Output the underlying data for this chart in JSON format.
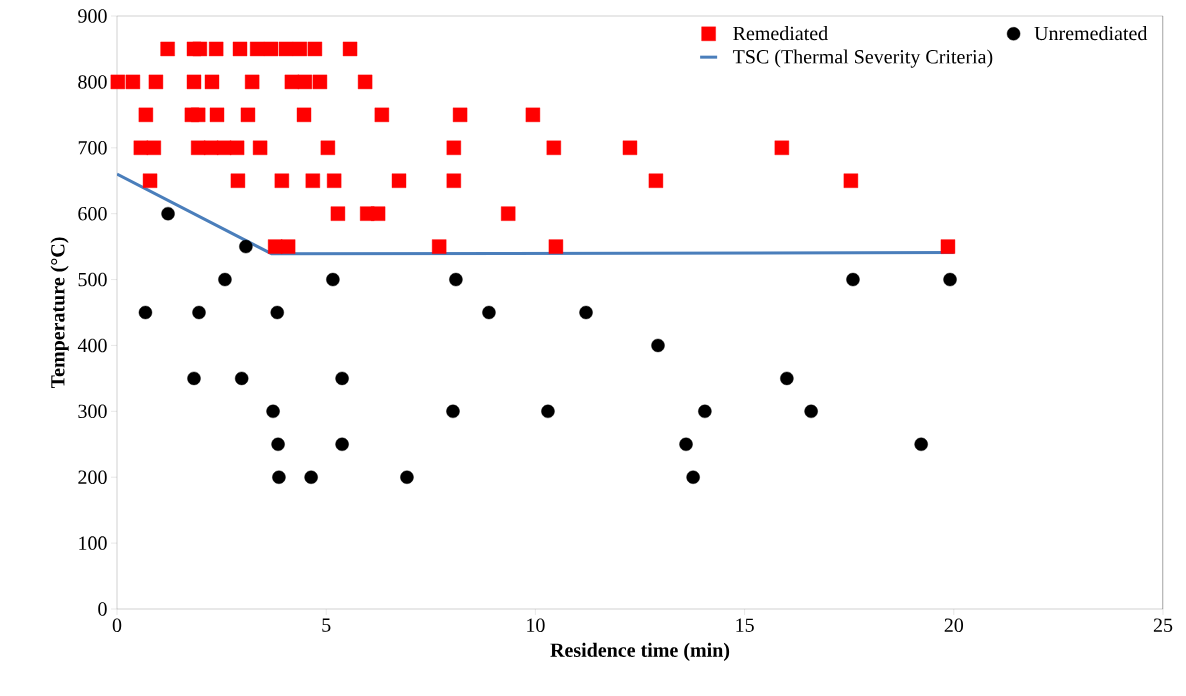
{
  "chart_data": {
    "type": "scatter",
    "xlabel": "Residence time (min)",
    "ylabel": "Temperature (°C)",
    "xlim": [
      0,
      25
    ],
    "ylim": [
      0,
      900
    ],
    "xticks": [
      0,
      5,
      10,
      15,
      20,
      25
    ],
    "yticks": [
      0,
      100,
      200,
      300,
      400,
      500,
      600,
      700,
      800,
      900
    ],
    "legend": "top right",
    "series": [
      {
        "name": "Remediated",
        "marker": "square",
        "color": "#ff0000",
        "x": [
          1.21,
          1.84,
          1.98,
          2.37,
          2.94,
          3.35,
          3.68,
          4.04,
          4.37,
          4.73,
          5.57,
          0.02,
          0.38,
          0.93,
          1.84,
          2.27,
          3.23,
          4.18,
          4.49,
          4.85,
          5.93,
          0.69,
          1.79,
          1.94,
          2.39,
          3.13,
          4.47,
          6.33,
          8.2,
          9.94,
          0.57,
          0.88,
          1.94,
          2.25,
          2.56,
          2.87,
          3.42,
          5.04,
          8.05,
          10.44,
          12.26,
          15.89,
          0.79,
          2.89,
          3.94,
          4.68,
          5.19,
          6.74,
          8.05,
          12.88,
          17.54,
          5.28,
          5.98,
          6.24,
          9.35,
          3.78,
          4.09,
          7.7,
          10.49,
          19.86
        ],
        "values": [
          850,
          850,
          850,
          850,
          850,
          850,
          850,
          850,
          850,
          850,
          850,
          800,
          800,
          800,
          800,
          800,
          800,
          800,
          800,
          800,
          800,
          750,
          750,
          750,
          750,
          750,
          750,
          750,
          750,
          750,
          700,
          700,
          700,
          700,
          700,
          700,
          700,
          700,
          700,
          700,
          700,
          700,
          650,
          650,
          650,
          650,
          650,
          650,
          650,
          650,
          650,
          600,
          600,
          600,
          600,
          550,
          550,
          550,
          550,
          550
        ]
      },
      {
        "name": "Unremediated",
        "marker": "circle",
        "color": "#000000",
        "x": [
          1.22,
          3.08,
          2.58,
          5.16,
          8.1,
          17.59,
          19.91,
          0.68,
          1.96,
          3.83,
          8.89,
          11.21,
          12.93,
          1.84,
          2.98,
          5.38,
          16.01,
          3.73,
          8.03,
          10.3,
          14.05,
          16.59,
          3.85,
          5.38,
          13.6,
          19.22,
          3.87,
          4.64,
          6.93,
          13.77
        ],
        "values": [
          600,
          550,
          500,
          500,
          500,
          500,
          500,
          450,
          450,
          450,
          450,
          450,
          400,
          350,
          350,
          350,
          350,
          300,
          300,
          300,
          300,
          300,
          250,
          250,
          250,
          250,
          200,
          200,
          200,
          200
        ]
      },
      {
        "name": "TSC (Thermal Severity Criteria)",
        "type": "line",
        "marker": "none",
        "color": "#4a7ebb",
        "x": [
          0,
          3.7,
          20
        ],
        "values": [
          660,
          539,
          541
        ]
      }
    ]
  }
}
